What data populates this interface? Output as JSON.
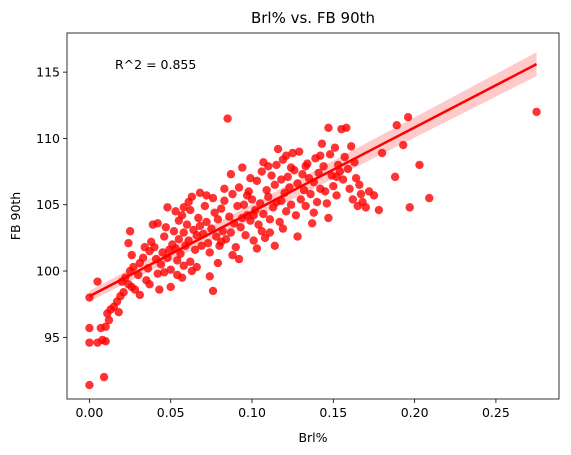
{
  "chart_data": {
    "type": "scatter",
    "title": "Brl% vs. FB 90th",
    "xlabel": "Brl%",
    "ylabel": "FB 90th",
    "annotation": "R^2 = 0.855",
    "xlim": [
      -0.0138,
      0.2888
    ],
    "ylim": [
      90.35,
      117.95
    ],
    "xticks": [
      0.0,
      0.05,
      0.1,
      0.15,
      0.2,
      0.25
    ],
    "xtick_labels": [
      "0.00",
      "0.05",
      "0.10",
      "0.15",
      "0.20",
      "0.25"
    ],
    "yticks": [
      95,
      100,
      105,
      110,
      115
    ],
    "ytick_labels": [
      "95",
      "100",
      "105",
      "110",
      "115"
    ],
    "grid": false,
    "colors": {
      "points": "#ff0000",
      "line": "#ff0000",
      "band": "#ffb3b3"
    },
    "regression": {
      "x": [
        0.0,
        0.275
      ],
      "y": [
        98.1,
        115.6
      ],
      "ci_upper": [
        98.5,
        116.5
      ],
      "ci_lower": [
        97.7,
        114.7
      ]
    },
    "points": [
      [
        0.0,
        91.4
      ],
      [
        0.009,
        92.0
      ],
      [
        0.0,
        94.6
      ],
      [
        0.0,
        95.7
      ],
      [
        0.0,
        98.0
      ],
      [
        0.005,
        94.6
      ],
      [
        0.008,
        94.8
      ],
      [
        0.01,
        94.7
      ],
      [
        0.007,
        95.7
      ],
      [
        0.01,
        95.8
      ],
      [
        0.012,
        96.3
      ],
      [
        0.011,
        96.8
      ],
      [
        0.013,
        97.1
      ],
      [
        0.015,
        97.3
      ],
      [
        0.005,
        99.2
      ],
      [
        0.017,
        97.7
      ],
      [
        0.019,
        98.1
      ],
      [
        0.021,
        98.4
      ],
      [
        0.018,
        96.9
      ],
      [
        0.02,
        99.2
      ],
      [
        0.022,
        99.5
      ],
      [
        0.024,
        99.0
      ],
      [
        0.026,
        98.8
      ],
      [
        0.028,
        98.6
      ],
      [
        0.025,
        100.0
      ],
      [
        0.027,
        100.3
      ],
      [
        0.024,
        102.1
      ],
      [
        0.025,
        103.0
      ],
      [
        0.03,
        99.7
      ],
      [
        0.031,
        100.6
      ],
      [
        0.033,
        101.0
      ],
      [
        0.035,
        99.3
      ],
      [
        0.036,
        100.2
      ],
      [
        0.037,
        101.5
      ],
      [
        0.038,
        102.2
      ],
      [
        0.04,
        101.8
      ],
      [
        0.041,
        100.9
      ],
      [
        0.042,
        99.8
      ],
      [
        0.043,
        98.6
      ],
      [
        0.044,
        100.5
      ],
      [
        0.045,
        101.4
      ],
      [
        0.046,
        102.6
      ],
      [
        0.047,
        103.3
      ],
      [
        0.048,
        104.8
      ],
      [
        0.048,
        101.0
      ],
      [
        0.05,
        100.1
      ],
      [
        0.05,
        98.8
      ],
      [
        0.051,
        102.0
      ],
      [
        0.052,
        103.0
      ],
      [
        0.053,
        101.7
      ],
      [
        0.054,
        100.8
      ],
      [
        0.055,
        102.4
      ],
      [
        0.055,
        103.8
      ],
      [
        0.056,
        101.3
      ],
      [
        0.057,
        104.2
      ],
      [
        0.058,
        100.4
      ],
      [
        0.058,
        102.9
      ],
      [
        0.059,
        101.9
      ],
      [
        0.06,
        103.5
      ],
      [
        0.061,
        102.3
      ],
      [
        0.062,
        100.7
      ],
      [
        0.062,
        104.6
      ],
      [
        0.063,
        105.6
      ],
      [
        0.064,
        103.1
      ],
      [
        0.065,
        101.6
      ],
      [
        0.066,
        102.7
      ],
      [
        0.067,
        104.0
      ],
      [
        0.068,
        103.4
      ],
      [
        0.069,
        101.9
      ],
      [
        0.07,
        102.8
      ],
      [
        0.071,
        104.9
      ],
      [
        0.072,
        103.7
      ],
      [
        0.073,
        102.1
      ],
      [
        0.074,
        99.6
      ],
      [
        0.075,
        103.2
      ],
      [
        0.076,
        98.5
      ],
      [
        0.076,
        105.5
      ],
      [
        0.077,
        104.4
      ],
      [
        0.078,
        102.6
      ],
      [
        0.079,
        103.9
      ],
      [
        0.08,
        101.9
      ],
      [
        0.081,
        104.7
      ],
      [
        0.082,
        103.0
      ],
      [
        0.083,
        105.3
      ],
      [
        0.084,
        102.4
      ],
      [
        0.085,
        111.5
      ],
      [
        0.086,
        104.1
      ],
      [
        0.087,
        102.9
      ],
      [
        0.088,
        105.8
      ],
      [
        0.089,
        103.6
      ],
      [
        0.09,
        101.8
      ],
      [
        0.091,
        104.9
      ],
      [
        0.092,
        106.3
      ],
      [
        0.093,
        103.3
      ],
      [
        0.094,
        107.8
      ],
      [
        0.095,
        105.0
      ],
      [
        0.096,
        102.7
      ],
      [
        0.097,
        104.2
      ],
      [
        0.098,
        106.0
      ],
      [
        0.099,
        103.8
      ],
      [
        0.1,
        105.4
      ],
      [
        0.101,
        102.3
      ],
      [
        0.102,
        104.6
      ],
      [
        0.103,
        106.8
      ],
      [
        0.104,
        103.5
      ],
      [
        0.105,
        105.1
      ],
      [
        0.106,
        107.5
      ],
      [
        0.107,
        104.3
      ],
      [
        0.108,
        102.5
      ],
      [
        0.109,
        106.1
      ],
      [
        0.11,
        105.6
      ],
      [
        0.111,
        103.9
      ],
      [
        0.112,
        107.2
      ],
      [
        0.113,
        104.8
      ],
      [
        0.114,
        106.5
      ],
      [
        0.115,
        105.2
      ],
      [
        0.116,
        109.2
      ],
      [
        0.117,
        103.7
      ],
      [
        0.118,
        106.9
      ],
      [
        0.119,
        108.4
      ],
      [
        0.12,
        105.9
      ],
      [
        0.121,
        104.5
      ],
      [
        0.122,
        107.1
      ],
      [
        0.123,
        106.3
      ],
      [
        0.124,
        105.0
      ],
      [
        0.125,
        108.9
      ],
      [
        0.126,
        107.6
      ],
      [
        0.127,
        104.2
      ],
      [
        0.128,
        106.6
      ],
      [
        0.129,
        109.0
      ],
      [
        0.13,
        105.4
      ],
      [
        0.131,
        107.3
      ],
      [
        0.132,
        106.1
      ],
      [
        0.133,
        104.9
      ],
      [
        0.134,
        108.1
      ],
      [
        0.135,
        107.0
      ],
      [
        0.136,
        105.8
      ],
      [
        0.137,
        103.6
      ],
      [
        0.138,
        106.7
      ],
      [
        0.139,
        108.5
      ],
      [
        0.14,
        105.2
      ],
      [
        0.141,
        107.4
      ],
      [
        0.142,
        106.2
      ],
      [
        0.143,
        109.6
      ],
      [
        0.144,
        107.9
      ],
      [
        0.145,
        106.0
      ],
      [
        0.146,
        105.1
      ],
      [
        0.147,
        110.8
      ],
      [
        0.148,
        108.8
      ],
      [
        0.149,
        107.2
      ],
      [
        0.15,
        106.4
      ],
      [
        0.151,
        109.3
      ],
      [
        0.152,
        105.7
      ],
      [
        0.153,
        108.0
      ],
      [
        0.154,
        107.5
      ],
      [
        0.155,
        110.7
      ],
      [
        0.156,
        106.9
      ],
      [
        0.157,
        108.6
      ],
      [
        0.158,
        110.8
      ],
      [
        0.159,
        107.7
      ],
      [
        0.16,
        106.2
      ],
      [
        0.161,
        109.4
      ],
      [
        0.162,
        105.4
      ],
      [
        0.163,
        108.2
      ],
      [
        0.164,
        107.0
      ],
      [
        0.165,
        104.9
      ],
      [
        0.166,
        106.5
      ],
      [
        0.167,
        105.8
      ],
      [
        0.168,
        105.2
      ],
      [
        0.17,
        104.8
      ],
      [
        0.172,
        106.0
      ],
      [
        0.175,
        105.7
      ],
      [
        0.178,
        104.6
      ],
      [
        0.18,
        108.9
      ],
      [
        0.188,
        107.1
      ],
      [
        0.189,
        111.0
      ],
      [
        0.193,
        109.5
      ],
      [
        0.196,
        111.6
      ],
      [
        0.197,
        104.8
      ],
      [
        0.203,
        108.0
      ],
      [
        0.209,
        105.5
      ],
      [
        0.275,
        112.0
      ],
      [
        0.034,
        101.8
      ],
      [
        0.039,
        103.5
      ],
      [
        0.046,
        99.9
      ],
      [
        0.053,
        104.5
      ],
      [
        0.057,
        99.5
      ],
      [
        0.061,
        105.2
      ],
      [
        0.066,
        100.3
      ],
      [
        0.072,
        105.7
      ],
      [
        0.079,
        100.6
      ],
      [
        0.083,
        106.2
      ],
      [
        0.088,
        101.2
      ],
      [
        0.094,
        104.0
      ],
      [
        0.099,
        107.0
      ],
      [
        0.103,
        101.7
      ],
      [
        0.107,
        108.2
      ],
      [
        0.111,
        102.9
      ],
      [
        0.115,
        108.0
      ],
      [
        0.119,
        103.2
      ],
      [
        0.124,
        107.8
      ],
      [
        0.128,
        102.6
      ],
      [
        0.133,
        107.9
      ],
      [
        0.138,
        104.4
      ],
      [
        0.142,
        108.7
      ],
      [
        0.147,
        104.0
      ],
      [
        0.152,
        107.1
      ],
      [
        0.026,
        101.2
      ],
      [
        0.031,
        98.2
      ],
      [
        0.037,
        99.0
      ],
      [
        0.042,
        103.6
      ],
      [
        0.049,
        101.6
      ],
      [
        0.054,
        99.7
      ],
      [
        0.058,
        104.8
      ],
      [
        0.063,
        100.0
      ],
      [
        0.068,
        105.9
      ],
      [
        0.074,
        101.4
      ],
      [
        0.081,
        102.2
      ],
      [
        0.087,
        107.3
      ],
      [
        0.092,
        100.9
      ],
      [
        0.097,
        105.7
      ],
      [
        0.101,
        104.2
      ],
      [
        0.106,
        103.0
      ],
      [
        0.11,
        107.9
      ],
      [
        0.114,
        101.9
      ],
      [
        0.118,
        105.3
      ],
      [
        0.121,
        108.7
      ]
    ]
  }
}
